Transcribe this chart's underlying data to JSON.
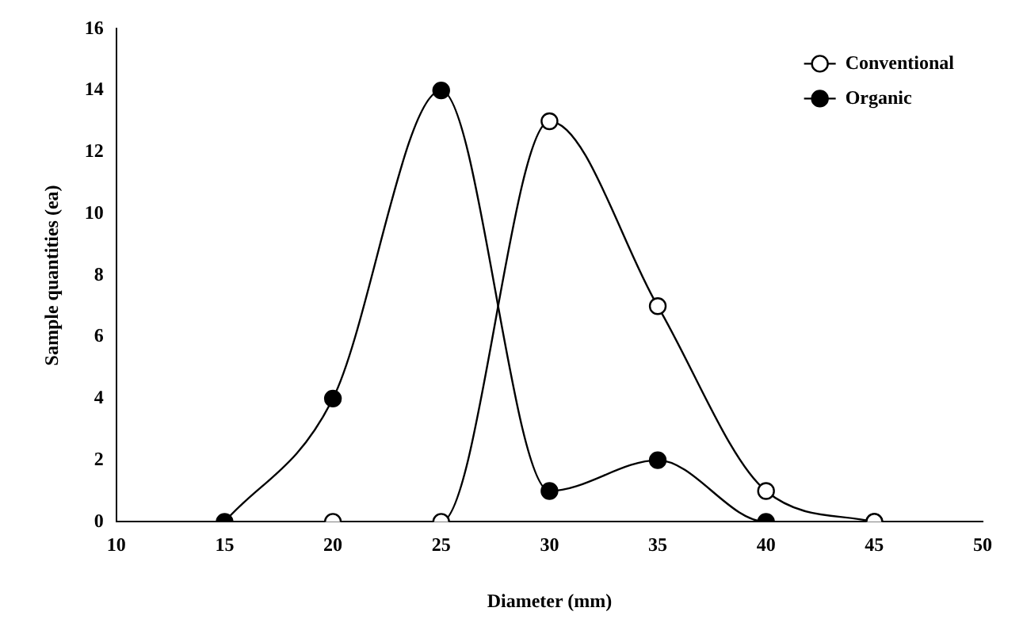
{
  "chart_data": {
    "type": "line",
    "xlabel": "Diameter (mm)",
    "ylabel": "Sample quantities (ea)",
    "xlim": [
      10,
      50
    ],
    "xticks": [
      10,
      15,
      20,
      25,
      30,
      35,
      40,
      45,
      50
    ],
    "ylim": [
      0,
      16
    ],
    "yticks": [
      0,
      2,
      4,
      6,
      8,
      10,
      12,
      14,
      16
    ],
    "grid": false,
    "legend": "top right",
    "marker": "circle",
    "series": [
      {
        "name": "Conventional",
        "color": "#ffffff",
        "x": [
          20,
          25,
          30,
          35,
          40,
          45
        ],
        "values": [
          0,
          0,
          13,
          7,
          1,
          0
        ]
      },
      {
        "name": "Organic",
        "color": "#000000",
        "x": [
          15,
          20,
          25,
          30,
          35,
          40,
          45
        ],
        "values": [
          0,
          4,
          14,
          1,
          2,
          0,
          0
        ]
      }
    ]
  }
}
